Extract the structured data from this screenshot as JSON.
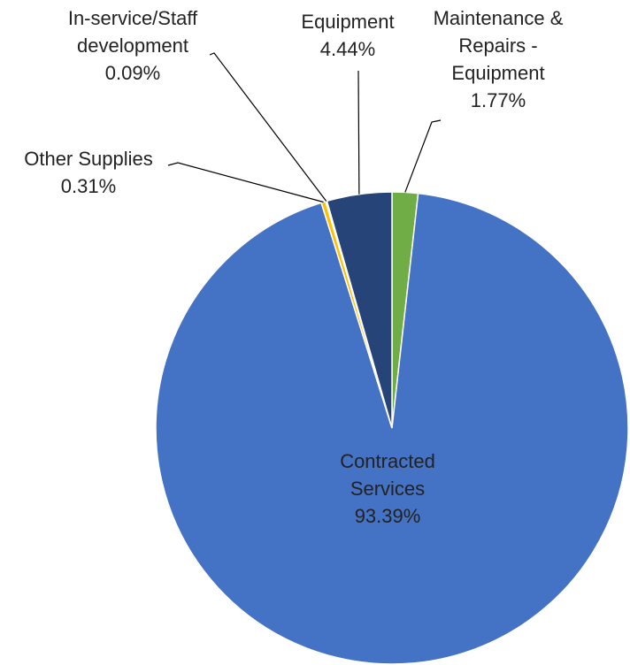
{
  "chart_data": {
    "type": "pie",
    "title": "",
    "slices": [
      {
        "label_lines": [
          "Maintenance &",
          "Repairs -",
          "Equipment"
        ],
        "value_label": "1.77%",
        "value": 1.77,
        "color": "#70AD47"
      },
      {
        "label_lines": [
          "Contracted",
          "Services"
        ],
        "value_label": "93.39%",
        "value": 93.39,
        "color": "#4472C4"
      },
      {
        "label_lines": [
          "Other Supplies"
        ],
        "value_label": "0.31%",
        "value": 0.31,
        "color": "#FFC000"
      },
      {
        "label_lines": [
          "In-service/Staff",
          "development"
        ],
        "value_label": "0.09%",
        "value": 0.09,
        "color": "#A5A5A5"
      },
      {
        "label_lines": [
          "Equipment"
        ],
        "value_label": "4.44%",
        "value": 4.44,
        "color": "#264478"
      }
    ],
    "start_angle_deg": 0,
    "direction": "clockwise",
    "legend": "none"
  }
}
